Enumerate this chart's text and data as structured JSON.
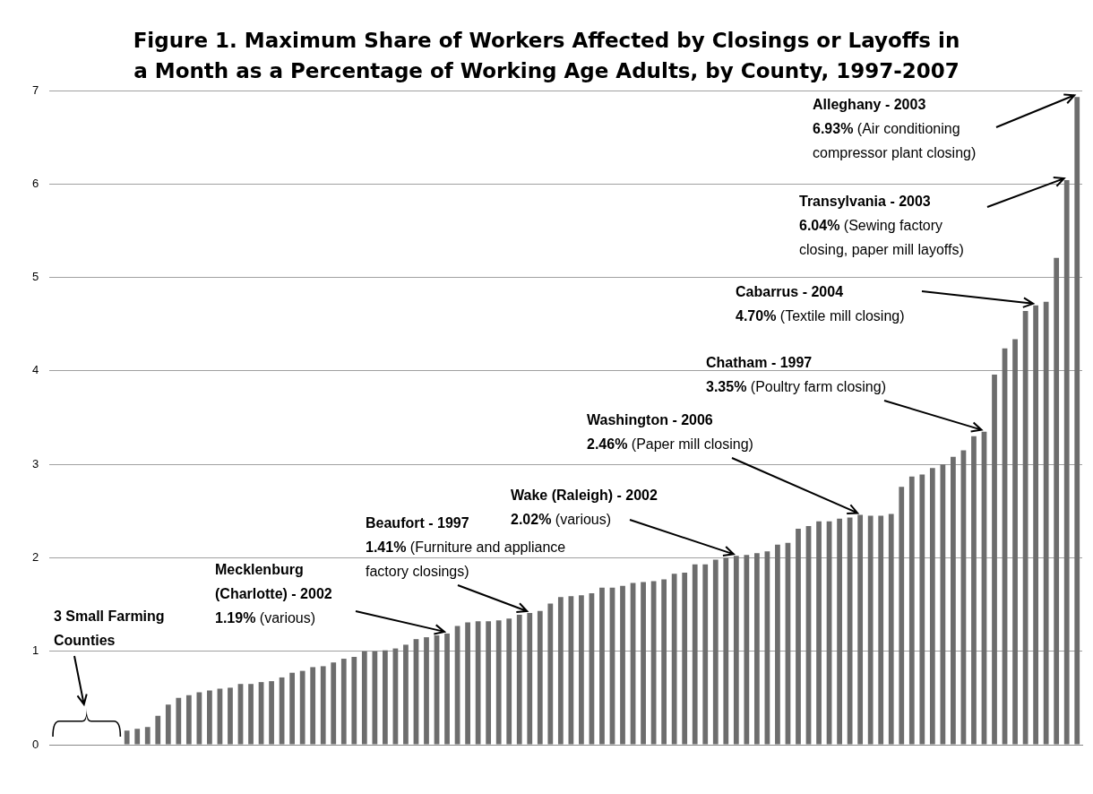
{
  "chart_data": {
    "type": "bar",
    "title": "Figure 1. Maximum Share of Workers Affected by Closings or Layoffs in\na Month as a Percentage of Working Age Adults, by County, 1997-2007",
    "categories": [
      null,
      null,
      null,
      null,
      null,
      null,
      null,
      null,
      null,
      null,
      null,
      null,
      null,
      null,
      null,
      null,
      null,
      null,
      null,
      null,
      null,
      null,
      null,
      null,
      null,
      null,
      null,
      null,
      null,
      null,
      null,
      null,
      null,
      null,
      null,
      null,
      null,
      null,
      null,
      null,
      null,
      null,
      null,
      null,
      null,
      null,
      null,
      null,
      null,
      null,
      null,
      null,
      null,
      null,
      null,
      null,
      null,
      null,
      null,
      null,
      null,
      null,
      null,
      null,
      null,
      null,
      null,
      null,
      null,
      null,
      null,
      null,
      null,
      null,
      null,
      null,
      null,
      null,
      null,
      null,
      null,
      null,
      null,
      null,
      null,
      null,
      null,
      null,
      null,
      null,
      null,
      null,
      null,
      null,
      null,
      null,
      null,
      null,
      null,
      null
    ],
    "values": [
      0,
      0,
      0,
      0,
      0,
      0,
      0,
      0.15,
      0.17,
      0.19,
      0.31,
      0.43,
      0.5,
      0.53,
      0.56,
      0.58,
      0.6,
      0.61,
      0.65,
      0.65,
      0.67,
      0.68,
      0.72,
      0.77,
      0.79,
      0.83,
      0.84,
      0.88,
      0.92,
      0.94,
      1.0,
      1.0,
      1.01,
      1.03,
      1.07,
      1.13,
      1.15,
      1.17,
      1.19,
      1.27,
      1.31,
      1.32,
      1.32,
      1.33,
      1.35,
      1.39,
      1.41,
      1.43,
      1.51,
      1.58,
      1.59,
      1.6,
      1.62,
      1.68,
      1.68,
      1.7,
      1.73,
      1.74,
      1.75,
      1.77,
      1.83,
      1.84,
      1.93,
      1.93,
      1.98,
      2.0,
      2.02,
      2.03,
      2.05,
      2.07,
      2.14,
      2.16,
      2.31,
      2.34,
      2.39,
      2.39,
      2.42,
      2.43,
      2.46,
      2.45,
      2.45,
      2.47,
      2.76,
      2.87,
      2.89,
      2.96,
      3.0,
      3.08,
      3.15,
      3.3,
      3.35,
      3.96,
      4.24,
      4.34,
      4.64,
      4.7,
      4.74,
      5.21,
      6.04,
      6.93
    ],
    "color": "#6d6d6d",
    "ylim": [
      0,
      7
    ],
    "yticks": [
      0,
      1,
      2,
      3,
      4,
      5,
      6,
      7
    ],
    "grid": "y",
    "annotations": [
      "3 Small Farming\nCounties",
      "Mecklenburg\n(Charlotte) - 2002\n1.19% (various)",
      "Beaufort - 1997\n1.41% (Furniture and appliance\nfactory closings)",
      "Wake (Raleigh) - 2002\n2.02% (various)",
      "Washington - 2006\n2.46% (Paper mill closing)",
      "Chatham - 1997\n3.35% (Poultry farm closing)",
      "Cabarrus - 2004\n4.70% (Textile mill closing)",
      "Transylvania - 2003\n6.04% (Sewing factory\nclosing, paper mill layoffs)",
      "Alleghany - 2003\n6.93% (Air conditioning\ncompressor plant closing)"
    ]
  }
}
